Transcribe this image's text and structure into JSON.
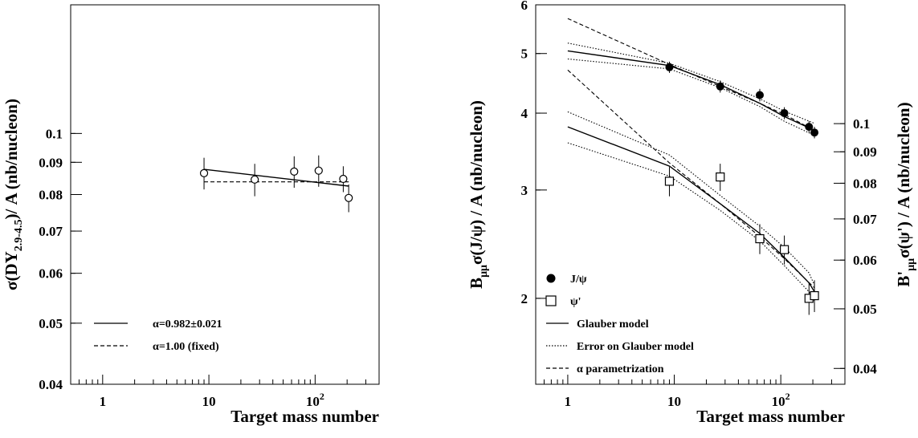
{
  "chart_data": [
    {
      "type": "scatter",
      "xscale": "log",
      "yscale": "log",
      "xlim": [
        0.5,
        400
      ],
      "ylim": [
        0.04,
        0.16
      ],
      "xlabel": "Target mass number",
      "ylabel": "σ(DY2.9-4.5)/ A (nb/nucleon)",
      "ylabel_parts": {
        "pre": "σ(DY",
        "sub": "2.9-4.5",
        "post": ")/ A (nb/nucleon)"
      },
      "x_ticks": [
        {
          "v": 1,
          "label": "1",
          "sup": ""
        },
        {
          "v": 10,
          "label": "10",
          "sup": ""
        },
        {
          "v": 100,
          "label": "10",
          "sup": "2"
        }
      ],
      "y_ticks": [
        {
          "v": 0.04,
          "label": "0.04"
        },
        {
          "v": 0.05,
          "label": "0.05"
        },
        {
          "v": 0.06,
          "label": "0.06"
        },
        {
          "v": 0.07,
          "label": "0.07"
        },
        {
          "v": 0.08,
          "label": "0.08"
        },
        {
          "v": 0.09,
          "label": "0.09"
        },
        {
          "v": 0.1,
          "label": "0.1"
        }
      ],
      "points": [
        {
          "x": 9,
          "y": 0.0865,
          "err": 0.005
        },
        {
          "x": 27,
          "y": 0.0845,
          "err": 0.005
        },
        {
          "x": 63.5,
          "y": 0.087,
          "err": 0.005
        },
        {
          "x": 108,
          "y": 0.0873,
          "err": 0.005
        },
        {
          "x": 184,
          "y": 0.0847,
          "err": 0.004
        },
        {
          "x": 207,
          "y": 0.079,
          "err": 0.004
        }
      ],
      "lines": [
        {
          "style": "solid",
          "points": [
            [
              9,
              0.0877
            ],
            [
              207,
              0.0825
            ]
          ]
        },
        {
          "style": "dashed",
          "points": [
            [
              9,
              0.0838
            ],
            [
              207,
              0.0838
            ]
          ]
        }
      ],
      "legend": [
        {
          "style": "solid",
          "label": "α=0.982±0.021"
        },
        {
          "style": "dashed",
          "label": "α=1.00 (fixed)"
        }
      ]
    },
    {
      "type": "scatter",
      "xscale": "log",
      "yscale": "log",
      "xlim": [
        0.5,
        400
      ],
      "ylim": [
        1.45,
        6.0
      ],
      "xlabel": "Target mass number",
      "ylabel": "Bμμσ(J/ψ) / A (nb/nucleon)",
      "ylabel_parts": {
        "pre": "B",
        "sub": "μμ",
        "post": "σ(J/ψ) / A (nb/nucleon)"
      },
      "ylabel_right": "B'μμσ(ψ') / A (nb/nucleon)",
      "ylabel_right_parts": {
        "pre": "B'",
        "sub": "μμ",
        "post": "σ(ψ') / A (nb/nucleon)"
      },
      "x_ticks": [
        {
          "v": 1,
          "label": "1",
          "sup": ""
        },
        {
          "v": 10,
          "label": "10",
          "sup": ""
        },
        {
          "v": 100,
          "label": "10",
          "sup": "2"
        }
      ],
      "y_ticks": [
        {
          "v": 2,
          "label": "2"
        },
        {
          "v": 3,
          "label": "3"
        },
        {
          "v": 4,
          "label": "4"
        },
        {
          "v": 5,
          "label": "5"
        },
        {
          "v": 6,
          "label": "6"
        }
      ],
      "y_right_ticks": [
        {
          "v": 0.04,
          "label": "0.04"
        },
        {
          "v": 0.05,
          "label": "0.05"
        },
        {
          "v": 0.06,
          "label": "0.06"
        },
        {
          "v": 0.07,
          "label": "0.07"
        },
        {
          "v": 0.08,
          "label": "0.08"
        },
        {
          "v": 0.09,
          "label": "0.09"
        },
        {
          "v": 0.1,
          "label": "0.1"
        }
      ],
      "y_right_ratio": 0.026,
      "series": [
        {
          "name": "J/ψ",
          "marker": "filled-circle",
          "points": [
            {
              "x": 9,
              "y": 4.75,
              "err": 0.1
            },
            {
              "x": 27,
              "y": 4.42,
              "err": 0.1
            },
            {
              "x": 63.5,
              "y": 4.28,
              "err": 0.1
            },
            {
              "x": 108,
              "y": 4.0,
              "err": 0.09
            },
            {
              "x": 184,
              "y": 3.8,
              "err": 0.08
            },
            {
              "x": 207,
              "y": 3.72,
              "err": 0.08
            }
          ]
        },
        {
          "name": "ψ'",
          "marker": "open-square",
          "points": [
            {
              "x": 9,
              "y": 3.1,
              "err": 0.17
            },
            {
              "x": 27,
              "y": 3.15,
              "err": 0.16
            },
            {
              "x": 63.5,
              "y": 2.5,
              "err": 0.14
            },
            {
              "x": 108,
              "y": 2.4,
              "err": 0.13
            },
            {
              "x": 184,
              "y": 2.0,
              "err": 0.12
            },
            {
              "x": 207,
              "y": 2.02,
              "err": 0.12
            }
          ]
        }
      ],
      "lines": [
        {
          "style": "solid",
          "points": [
            [
              1,
              5.05
            ],
            [
              9,
              4.78
            ],
            [
              27,
              4.45
            ],
            [
              63.5,
              4.15
            ],
            [
              108,
              3.95
            ],
            [
              207,
              3.75
            ]
          ]
        },
        {
          "style": "dotted",
          "points": [
            [
              1,
              5.2
            ],
            [
              9,
              4.82
            ],
            [
              27,
              4.5
            ],
            [
              63.5,
              4.22
            ],
            [
              108,
              4.03
            ],
            [
              207,
              3.85
            ]
          ]
        },
        {
          "style": "dotted",
          "points": [
            [
              1,
              4.9
            ],
            [
              9,
              4.72
            ],
            [
              27,
              4.4
            ],
            [
              63.5,
              4.1
            ],
            [
              108,
              3.88
            ],
            [
              207,
              3.68
            ]
          ]
        },
        {
          "style": "dashed",
          "points": [
            [
              1,
              5.7
            ],
            [
              9,
              4.8
            ],
            [
              27,
              4.42
            ],
            [
              63.5,
              4.15
            ],
            [
              108,
              3.98
            ],
            [
              207,
              3.75
            ]
          ]
        },
        {
          "style": "solid",
          "points": [
            [
              1,
              3.8
            ],
            [
              9,
              3.28
            ],
            [
              27,
              2.85
            ],
            [
              63.5,
              2.55
            ],
            [
              108,
              2.33
            ],
            [
              184,
              2.12
            ],
            [
              207,
              2.05
            ]
          ]
        },
        {
          "style": "dotted",
          "points": [
            [
              1,
              4.02
            ],
            [
              9,
              3.42
            ],
            [
              27,
              2.94
            ],
            [
              63.5,
              2.62
            ],
            [
              108,
              2.42
            ],
            [
              184,
              2.2
            ],
            [
              207,
              2.1
            ]
          ]
        },
        {
          "style": "dotted",
          "points": [
            [
              1,
              3.58
            ],
            [
              9,
              3.16
            ],
            [
              27,
              2.78
            ],
            [
              63.5,
              2.48
            ],
            [
              108,
              2.26
            ],
            [
              184,
              2.05
            ],
            [
              207,
              1.98
            ]
          ]
        },
        {
          "style": "dashed",
          "points": [
            [
              1,
              4.7
            ],
            [
              9,
              3.32
            ],
            [
              27,
              2.85
            ],
            [
              63.5,
              2.52
            ],
            [
              108,
              2.32
            ],
            [
              207,
              2.08
            ]
          ]
        }
      ],
      "legend": [
        {
          "style": "filled-circle",
          "label": "J/ψ"
        },
        {
          "style": "open-square",
          "label": "ψ'"
        },
        {
          "style": "solid",
          "label": "Glauber model"
        },
        {
          "style": "dotted",
          "label": "Error on Glauber model"
        },
        {
          "style": "dashed",
          "label": "α parametrization"
        }
      ]
    }
  ]
}
